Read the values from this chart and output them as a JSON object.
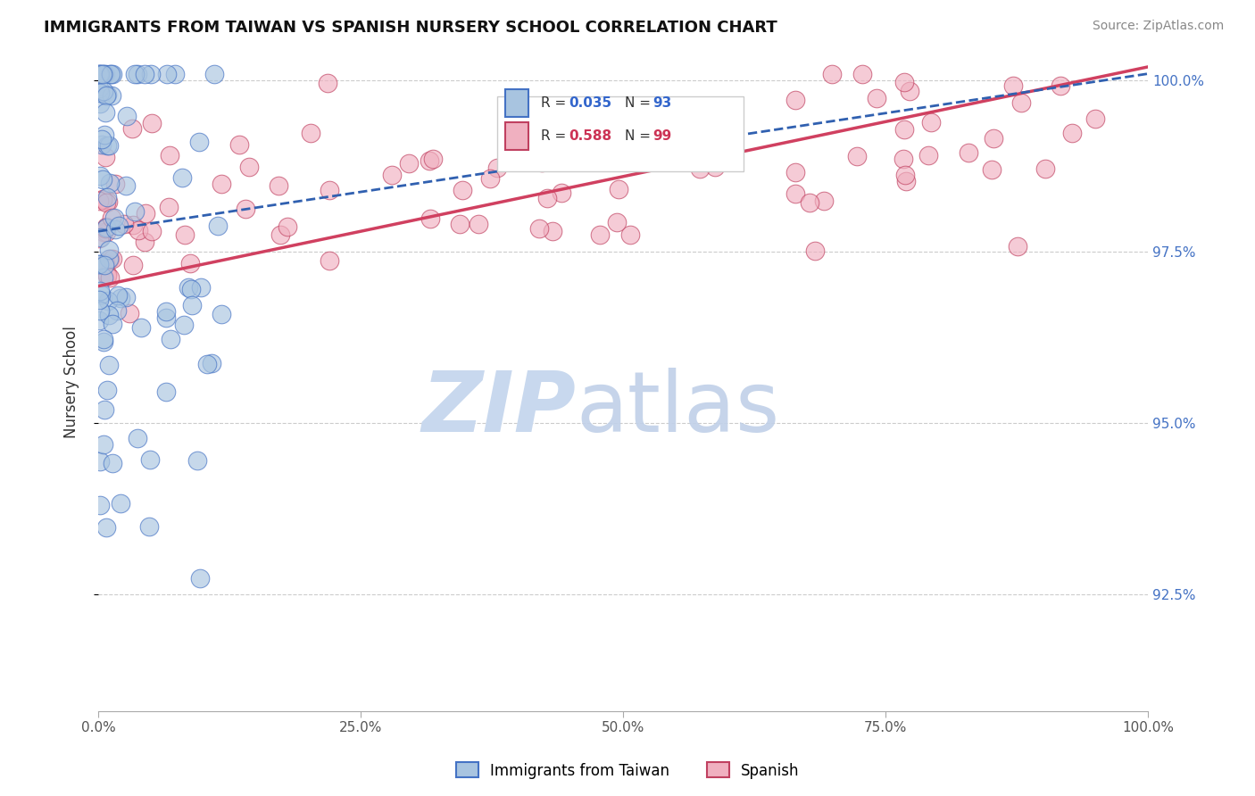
{
  "title": "IMMIGRANTS FROM TAIWAN VS SPANISH NURSERY SCHOOL CORRELATION CHART",
  "source": "Source: ZipAtlas.com",
  "ylabel": "Nursery School",
  "ytick_labels": [
    "92.5%",
    "95.0%",
    "97.5%",
    "100.0%"
  ],
  "ytick_values": [
    0.925,
    0.95,
    0.975,
    1.0
  ],
  "legend_blue_r": "R = 0.035",
  "legend_blue_n": "N = 93",
  "legend_pink_r": "R = 0.588",
  "legend_pink_n": "N = 99",
  "legend_blue_label": "Immigrants from Taiwan",
  "legend_pink_label": "Spanish",
  "blue_color": "#a8c4e0",
  "pink_color": "#f0b0c0",
  "trend_blue_color": "#3060b0",
  "trend_pink_color": "#d04060",
  "blue_edge_color": "#4472c4",
  "pink_edge_color": "#c04060",
  "r_blue_color": "#3366cc",
  "r_pink_color": "#cc3355",
  "watermark_zip_color": "#c8d8ee",
  "watermark_atlas_color": "#c0d0e8",
  "ylim_low": 0.908,
  "ylim_high": 1.004,
  "xlim_low": 0.0,
  "xlim_high": 1.0,
  "blue_trend_x0": 0.0,
  "blue_trend_y0": 0.978,
  "blue_trend_x1": 1.0,
  "blue_trend_y1": 1.001,
  "pink_trend_x0": 0.0,
  "pink_trend_y0": 0.97,
  "pink_trend_x1": 1.0,
  "pink_trend_y1": 1.002,
  "grid_color": "#cccccc",
  "axis_color": "#aaaaaa",
  "title_color": "#111111",
  "source_color": "#888888",
  "ylabel_color": "#333333",
  "ytick_right_color": "#4472c4",
  "xtick_color": "#555555",
  "legend_box_edge": "#cccccc",
  "legend_box_face": "#ffffff"
}
